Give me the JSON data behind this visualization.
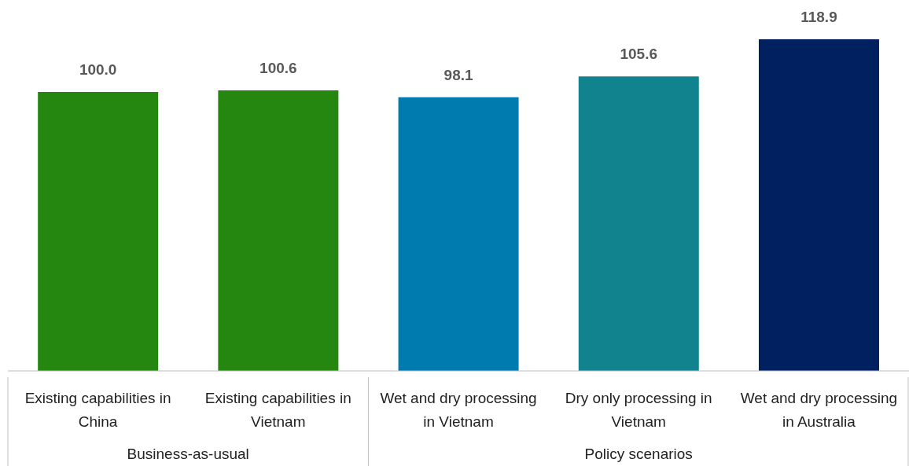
{
  "chart_data": {
    "type": "bar",
    "categories": [
      "Existing capabilities in China",
      "Existing capabilities in Vietnam",
      "Wet and dry processing in Vietnam",
      "Dry only processing in Vietnam",
      "Wet and dry processing in Australia"
    ],
    "values": [
      100.0,
      100.6,
      98.1,
      105.6,
      118.9
    ],
    "colors": [
      "#268710",
      "#268710",
      "#007bb0",
      "#10838f",
      "#002060"
    ],
    "data_labels": true,
    "value_labels": [
      "100.0",
      "100.6",
      "98.1",
      "105.6",
      "118.9"
    ],
    "grid": false,
    "legend": false,
    "annotations": [
      "Business-as-usual",
      "Policy scenarios"
    ]
  }
}
